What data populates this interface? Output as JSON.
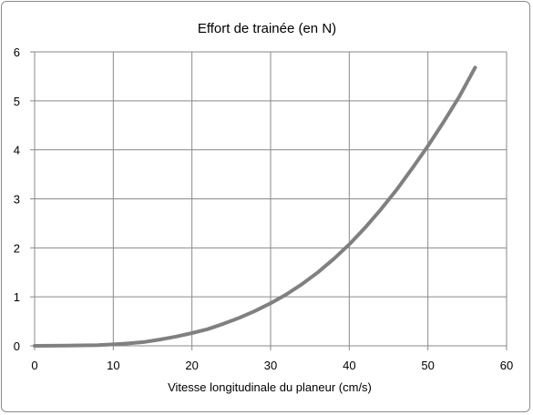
{
  "chart_data": {
    "type": "line",
    "title": "Effort de trainée (en N)",
    "xlabel": "Vitesse longitudinale du planeur (cm/s)",
    "ylabel": "",
    "xlim": [
      0,
      60
    ],
    "ylim": [
      0,
      6
    ],
    "x_ticks": [
      0,
      10,
      20,
      30,
      40,
      50,
      60
    ],
    "y_ticks": [
      0,
      1,
      2,
      3,
      4,
      5,
      6
    ],
    "x_tick_labels": [
      "0",
      "10",
      "20",
      "30",
      "40",
      "50",
      "60"
    ],
    "y_tick_labels": [
      "0",
      "1",
      "2",
      "3",
      "4",
      "5",
      "6"
    ],
    "grid": true,
    "legend": "none",
    "series": [
      {
        "color": "#808080",
        "x": [
          0,
          4,
          8,
          10,
          12,
          14,
          16,
          18,
          20,
          22,
          24,
          26,
          28,
          30,
          32,
          34,
          36,
          38,
          40,
          42,
          44,
          46,
          48,
          50,
          52,
          54,
          56
        ],
        "y": [
          0,
          0.003,
          0.015,
          0.03,
          0.05,
          0.08,
          0.13,
          0.19,
          0.26,
          0.34,
          0.45,
          0.57,
          0.71,
          0.87,
          1.05,
          1.26,
          1.5,
          1.77,
          2.07,
          2.41,
          2.78,
          3.18,
          3.62,
          4.08,
          4.57,
          5.09,
          5.68
        ]
      }
    ]
  }
}
